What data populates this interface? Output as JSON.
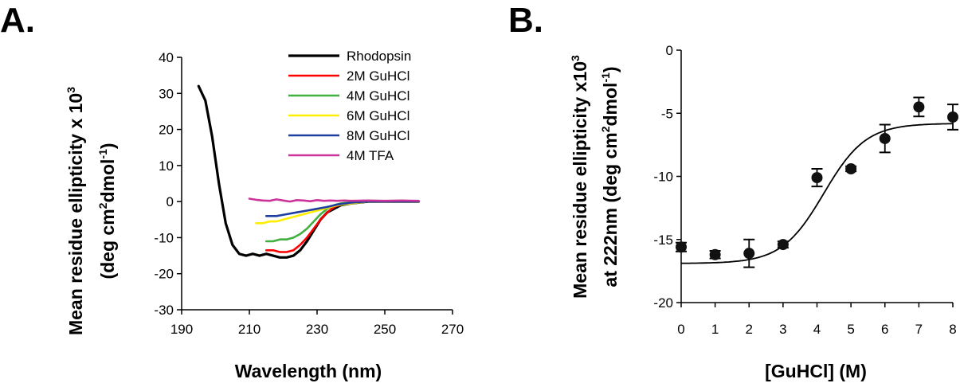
{
  "chart_data": [
    {
      "panel": "A.",
      "type": "line",
      "xlabel": "Wavelength (nm)",
      "ylabel": {
        "line1_pre": "Mean residue ellipticity x 10",
        "line1_sup": "3",
        "line2_pre": "(deg cm",
        "line2_sup1": "2",
        "line2_mid": "dmol",
        "line2_sup2": "-1",
        "line2_post": ")"
      },
      "xlim": [
        190,
        270
      ],
      "ylim": [
        -30,
        40
      ],
      "xticks": [
        190,
        210,
        230,
        250,
        270
      ],
      "yticks": [
        -30,
        -20,
        -10,
        0,
        10,
        20,
        30,
        40
      ],
      "legend_position": "top-right",
      "series": [
        {
          "name": "Rhodopsin",
          "color": "#000000",
          "x": [
            195,
            197,
            199,
            201,
            203,
            205,
            207,
            209,
            211,
            213,
            215,
            217,
            219,
            221,
            223,
            225,
            227,
            229,
            231,
            233,
            235,
            237,
            240,
            245,
            250,
            255,
            260
          ],
          "y": [
            32,
            28,
            18,
            5,
            -6,
            -12,
            -14.5,
            -15,
            -14.5,
            -15,
            -14.5,
            -15,
            -15.5,
            -15.5,
            -15,
            -13.5,
            -11,
            -8,
            -5,
            -3,
            -2,
            -1,
            -0.5,
            0,
            0,
            0,
            0
          ]
        },
        {
          "name": "2M GuHCl",
          "color": "#ff0000",
          "x": [
            215,
            217,
            219,
            221,
            223,
            225,
            227,
            229,
            231,
            233,
            235,
            237,
            240,
            245,
            250,
            255,
            260
          ],
          "y": [
            -13.5,
            -13.5,
            -14,
            -14,
            -13.5,
            -12,
            -10,
            -7.5,
            -5,
            -3,
            -1.5,
            -0.8,
            -0.3,
            0,
            0,
            0,
            0
          ]
        },
        {
          "name": "4M GuHCl",
          "color": "#40b040",
          "x": [
            215,
            217,
            219,
            221,
            223,
            225,
            227,
            229,
            231,
            233,
            235,
            237,
            240,
            245,
            250,
            255,
            260
          ],
          "y": [
            -11,
            -11,
            -10.5,
            -10.5,
            -10,
            -9,
            -7.5,
            -5.5,
            -3.5,
            -2,
            -1,
            -0.5,
            -0.2,
            0,
            0,
            0,
            0
          ]
        },
        {
          "name": "6M GuHCl",
          "color": "#ffee00",
          "x": [
            212,
            214,
            216,
            218,
            220,
            222,
            224,
            226,
            228,
            230,
            232,
            234,
            236,
            240,
            245,
            250,
            255,
            260
          ],
          "y": [
            -6,
            -6,
            -5.5,
            -5.5,
            -5,
            -4.5,
            -4,
            -3.5,
            -3,
            -2.5,
            -2,
            -1.5,
            -1,
            -0.5,
            0,
            0,
            0,
            0
          ]
        },
        {
          "name": "8M GuHCl",
          "color": "#1f3fa0",
          "x": [
            215,
            218,
            221,
            224,
            227,
            230,
            233,
            236,
            240,
            245,
            250,
            255,
            260
          ],
          "y": [
            -4,
            -4,
            -3.5,
            -3,
            -2.5,
            -2,
            -1.5,
            -0.8,
            -0.3,
            0,
            0,
            0,
            0
          ]
        },
        {
          "name": "4M TFA",
          "color": "#cc3399",
          "x": [
            210,
            212,
            214,
            216,
            218,
            220,
            222,
            224,
            226,
            228,
            230,
            232,
            234,
            236,
            238,
            240,
            245,
            250,
            255,
            260
          ],
          "y": [
            0.8,
            0.5,
            0.3,
            0.2,
            0.6,
            0.3,
            0,
            0.4,
            0.3,
            0.1,
            0.4,
            0.2,
            0.3,
            0.2,
            0.3,
            0.2,
            0.3,
            0.2,
            0.3,
            0.2
          ]
        }
      ]
    },
    {
      "panel": "B.",
      "type": "scatter",
      "xlabel": "[GuHCl] (M)",
      "ylabel": {
        "line1_pre": "Mean residue ellipticity x10",
        "line1_sup": "3",
        "line2_pre": "at 222nm (deg cm",
        "line2_sup1": "2",
        "line2_mid": "dmol",
        "line2_sup2": "-1",
        "line2_post": ")"
      },
      "xlim": [
        0,
        8
      ],
      "ylim": [
        -20,
        0
      ],
      "xticks": [
        0,
        1,
        2,
        3,
        4,
        5,
        6,
        7,
        8
      ],
      "yticks": [
        -20,
        -15,
        -10,
        -5,
        0
      ],
      "points": {
        "x": [
          0,
          1,
          2,
          3,
          4,
          5,
          6,
          7,
          8
        ],
        "y": [
          -15.6,
          -16.2,
          -16.1,
          -15.4,
          -10.1,
          -9.4,
          -7.0,
          -4.5,
          -5.3
        ],
        "err": [
          0.35,
          0.3,
          1.1,
          0.25,
          0.7,
          0.2,
          1.1,
          0.75,
          1.0
        ]
      },
      "fit": {
        "bottom": -16.9,
        "top": -5.8,
        "midpoint": 4.2,
        "slope": 0.62
      }
    }
  ]
}
